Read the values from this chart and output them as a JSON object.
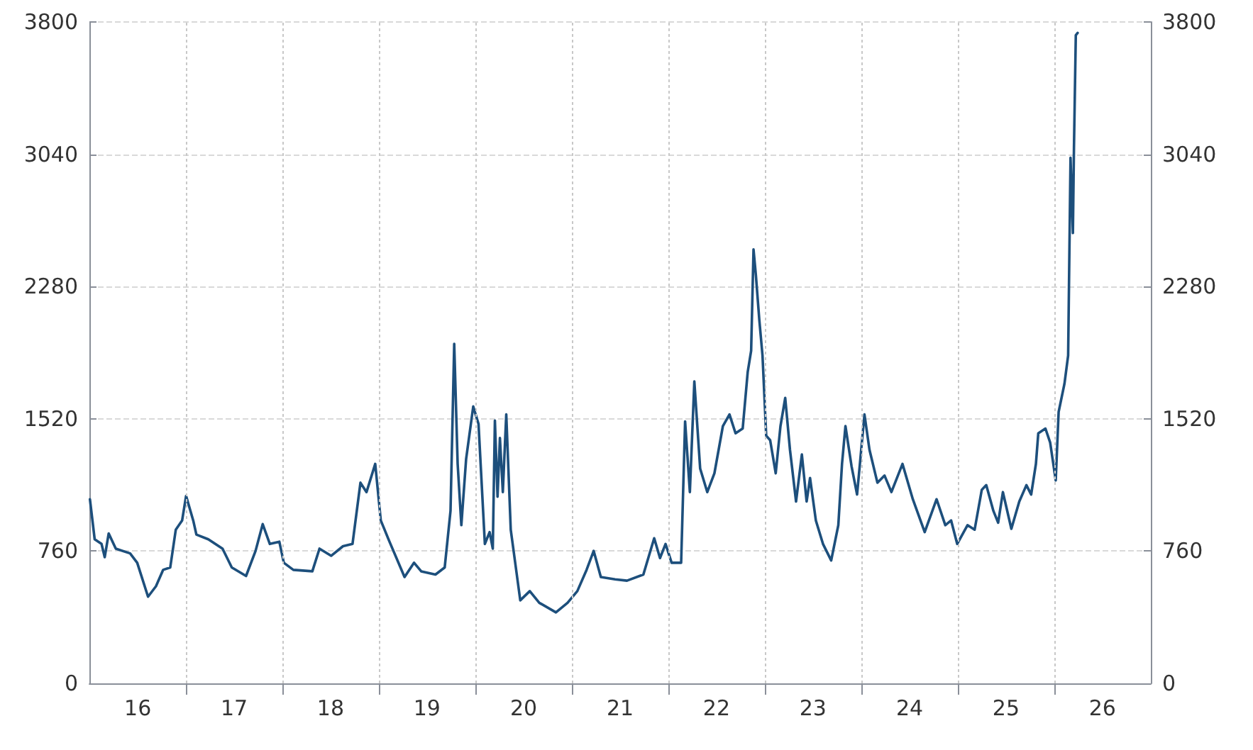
{
  "chart_data": {
    "type": "line",
    "line_style": "solid",
    "marker": "none",
    "grid": true,
    "xlim": [
      "2016-01-01",
      "2027-01-01"
    ],
    "xticks": [
      {
        "value": "2016-07-02",
        "label": "16"
      },
      {
        "value": "2017-01-01",
        "label": null
      },
      {
        "value": "2017-07-02",
        "label": "17"
      },
      {
        "value": "2018-01-01",
        "label": null
      },
      {
        "value": "2018-07-02",
        "label": "18"
      },
      {
        "value": "2019-01-01",
        "label": null
      },
      {
        "value": "2019-07-02",
        "label": "19"
      },
      {
        "value": "2020-01-01",
        "label": null
      },
      {
        "value": "2020-07-02",
        "label": "20"
      },
      {
        "value": "2021-01-01",
        "label": null
      },
      {
        "value": "2021-07-02",
        "label": "21"
      },
      {
        "value": "2022-01-01",
        "label": null
      },
      {
        "value": "2022-07-02",
        "label": "22"
      },
      {
        "value": "2023-01-01",
        "label": null
      },
      {
        "value": "2023-07-02",
        "label": "23"
      },
      {
        "value": "2024-01-01",
        "label": null
      },
      {
        "value": "2024-07-02",
        "label": "24"
      },
      {
        "value": "2025-01-01",
        "label": null
      },
      {
        "value": "2025-07-02",
        "label": "25"
      },
      {
        "value": "2026-01-01",
        "label": null
      },
      {
        "value": "2026-07-02",
        "label": "26"
      }
    ],
    "ylim": [
      0,
      3800
    ],
    "yticks": [
      0,
      760,
      1520,
      2280,
      3040,
      3800
    ],
    "y2lim": [
      0,
      3800
    ],
    "y2ticks": [
      0,
      760,
      1520,
      2280,
      3040,
      3800
    ],
    "series": [
      {
        "color": "#1d4f7c",
        "x": [
          "2016-01-03",
          "2016-01-21",
          "2016-02-16",
          "2016-02-28",
          "2016-03-14",
          "2016-04-10",
          "2016-06-03",
          "2016-06-30",
          "2016-08-10",
          "2016-09-09",
          "2016-10-06",
          "2016-11-02",
          "2016-11-23",
          "2016-12-17",
          "2017-01-01",
          "2017-01-28",
          "2017-02-09",
          "2017-03-26",
          "2017-05-19",
          "2017-06-23",
          "2017-08-16",
          "2017-09-21",
          "2017-10-18",
          "2017-11-14",
          "2017-12-20",
          "2018-01-06",
          "2018-02-11",
          "2018-04-24",
          "2018-05-21",
          "2018-07-04",
          "2018-08-18",
          "2018-09-23",
          "2018-10-23",
          "2018-11-15",
          "2018-12-18",
          "2019-01-08",
          "2019-02-10",
          "2019-04-08",
          "2019-05-14",
          "2019-06-10",
          "2019-08-03",
          "2019-09-07",
          "2019-09-29",
          "2019-10-13",
          "2019-10-26",
          "2019-11-09",
          "2019-11-27",
          "2019-12-24",
          "2020-01-13",
          "2020-02-06",
          "2020-02-24",
          "2020-03-07",
          "2020-03-15",
          "2020-03-25",
          "2020-04-03",
          "2020-04-14",
          "2020-04-27",
          "2020-05-14",
          "2020-06-19",
          "2020-07-25",
          "2020-08-30",
          "2020-11-01",
          "2020-12-15",
          "2021-01-21",
          "2021-02-25",
          "2021-03-24",
          "2021-04-20",
          "2021-06-13",
          "2021-07-28",
          "2021-09-28",
          "2021-11-08",
          "2021-11-30",
          "2021-12-21",
          "2022-01-13",
          "2022-02-18",
          "2022-03-05",
          "2022-03-23",
          "2022-04-09",
          "2022-05-01",
          "2022-05-28",
          "2022-06-24",
          "2022-07-26",
          "2022-08-20",
          "2022-09-12",
          "2022-10-09",
          "2022-10-28",
          "2022-11-10",
          "2022-11-19",
          "2022-11-28",
          "2022-12-11",
          "2022-12-23",
          "2023-01-06",
          "2023-01-21",
          "2023-02-11",
          "2023-03-01",
          "2023-03-19",
          "2023-04-06",
          "2023-04-29",
          "2023-05-21",
          "2023-06-08",
          "2023-06-21",
          "2023-07-13",
          "2023-08-09",
          "2023-09-09",
          "2023-10-06",
          "2023-10-20",
          "2023-11-02",
          "2023-11-25",
          "2023-12-16",
          "2024-01-13",
          "2024-02-01",
          "2024-03-02",
          "2024-03-29",
          "2024-04-24",
          "2024-06-05",
          "2024-07-14",
          "2024-08-28",
          "2024-10-12",
          "2024-11-14",
          "2024-12-06",
          "2024-12-29",
          "2025-02-06",
          "2025-03-05",
          "2025-04-01",
          "2025-04-18",
          "2025-05-15",
          "2025-06-02",
          "2025-06-20",
          "2025-07-22",
          "2025-08-21",
          "2025-09-17",
          "2025-10-05",
          "2025-10-23",
          "2025-11-01",
          "2025-11-28",
          "2025-12-16",
          "2026-01-06",
          "2026-01-17",
          "2026-02-08",
          "2026-02-22",
          "2026-03-03",
          "2026-03-12",
          "2026-03-16",
          "2026-03-23",
          "2026-03-30"
        ],
        "values": [
          1058,
          828,
          801,
          725,
          861,
          774,
          747,
          693,
          498,
          558,
          652,
          666,
          883,
          936,
          1077,
          936,
          855,
          828,
          774,
          666,
          617,
          761,
          915,
          801,
          814,
          693,
          652,
          644,
          774,
          733,
          788,
          801,
          1153,
          1099,
          1261,
          936,
          814,
          611,
          693,
          644,
          625,
          666,
          991,
          1951,
          1261,
          909,
          1288,
          1591,
          1491,
          801,
          869,
          774,
          1510,
          1072,
          1410,
          1099,
          1545,
          883,
          477,
          530,
          463,
          408,
          463,
          530,
          652,
          761,
          611,
          598,
          590,
          625,
          834,
          720,
          801,
          693,
          693,
          1505,
          1099,
          1735,
          1234,
          1099,
          1207,
          1478,
          1545,
          1437,
          1464,
          1789,
          1911,
          2493,
          2344,
          2087,
          1884,
          1423,
          1397,
          1207,
          1478,
          1640,
          1342,
          1045,
          1315,
          1045,
          1180,
          936,
          801,
          706,
          909,
          1261,
          1478,
          1248,
          1085,
          1545,
          1342,
          1153,
          1194,
          1099,
          1261,
          1058,
          869,
          1058,
          909,
          936,
          801,
          909,
          883,
          1112,
          1139,
          991,
          923,
          1099,
          888,
          1045,
          1139,
          1085,
          1261,
          1437,
          1464,
          1383,
          1166,
          1559,
          1721,
          1884,
          3020,
          2587,
          3075,
          3724,
          3737
        ]
      }
    ]
  }
}
